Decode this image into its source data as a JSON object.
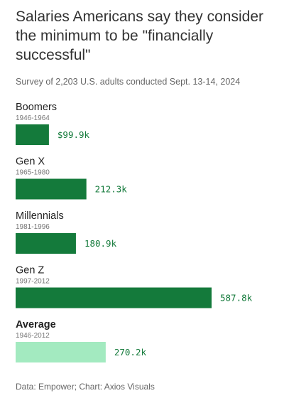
{
  "title": "Salaries Americans say they consider the minimum to be \"financially successful\"",
  "subtitle": "Survey of 2,203 U.S. adults conducted Sept. 13-14, 2024",
  "source": "Data: Empower; Chart: Axios Visuals",
  "colors": {
    "bar_primary": "#147a3b",
    "bar_average": "#a3eac0",
    "label_primary": "#147a3b",
    "label_average": "#147a3b"
  },
  "chart_data": {
    "type": "bar",
    "orientation": "horizontal",
    "value_unit": "thousands of dollars",
    "categories": [
      "Boomers",
      "Gen X",
      "Millennials",
      "Gen Z",
      "Average"
    ],
    "category_years": [
      "1946-1964",
      "1965-1980",
      "1981-1996",
      "1997-2012",
      "1946-2012"
    ],
    "values": [
      99.9,
      212.3,
      180.9,
      587.8,
      270.2
    ],
    "value_labels": [
      "$99.9k",
      "212.3k",
      "180.9k",
      "587.8k",
      "270.2k"
    ],
    "highlight": [
      "primary",
      "primary",
      "primary",
      "primary",
      "average"
    ],
    "bold_category": [
      false,
      false,
      false,
      false,
      true
    ],
    "xlim": [
      0,
      587.8
    ],
    "grid": false,
    "title": "Salaries Americans say they consider the minimum to be \"financially successful\"",
    "subtitle": "Survey of 2,203 U.S. adults conducted Sept. 13-14, 2024",
    "xlabel": "",
    "ylabel": ""
  }
}
